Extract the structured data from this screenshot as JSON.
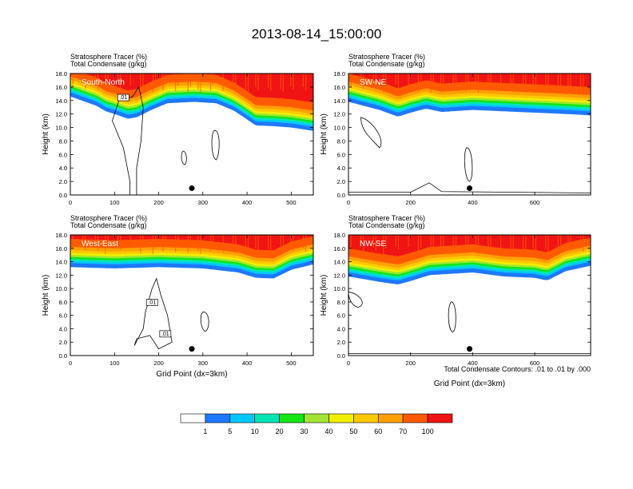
{
  "title": "2013-08-14_15:00:00",
  "panel_header": {
    "line1": "Stratosphere Tracer",
    "line1_units": "(%)",
    "line2": "Total Condensate",
    "line2_units": "(g/kg)"
  },
  "contour_note": "Total Condensate Contours: .01 to .01 by .000",
  "colors": {
    "levels": [
      "#ffffff",
      "#1e78ff",
      "#00c8ff",
      "#00e6b4",
      "#14e614",
      "#a0e632",
      "#f0f000",
      "#ffc800",
      "#ffa000",
      "#ff5a00",
      "#f01414"
    ],
    "contour": "#000000",
    "marker": "#000000"
  },
  "chart_data": [
    {
      "type": "heatmap",
      "panel": "South-North",
      "xlabel": "",
      "ylabel": "Height (km)",
      "xlim": [
        0,
        550
      ],
      "ylim": [
        0,
        18
      ],
      "xticks": [
        0,
        100,
        200,
        300,
        400,
        500
      ],
      "yticks": [
        "0.0",
        "2.0",
        "4.0",
        "6.0",
        "8.0",
        "10.0",
        "12.0",
        "14.0",
        "16.0",
        "18.0"
      ],
      "marker_x": 275,
      "contour_label": ".01",
      "tracer_base_profile_km": [
        [
          0,
          14.6
        ],
        [
          60,
          13.2
        ],
        [
          80,
          12.4
        ],
        [
          100,
          12.0
        ],
        [
          130,
          11.3
        ],
        [
          150,
          11.5
        ],
        [
          180,
          12.5
        ],
        [
          220,
          13.6
        ],
        [
          280,
          13.8
        ],
        [
          330,
          13.6
        ],
        [
          370,
          12.5
        ],
        [
          400,
          11.2
        ],
        [
          420,
          10.3
        ],
        [
          460,
          10.2
        ],
        [
          500,
          10.0
        ],
        [
          550,
          9.5
        ]
      ]
    },
    {
      "type": "heatmap",
      "panel": "SW-NE",
      "xlabel": "",
      "ylabel": "Height (km)",
      "xlim": [
        0,
        780
      ],
      "ylim": [
        0,
        18
      ],
      "xticks": [
        0,
        200,
        400,
        600
      ],
      "yticks": [
        "0.0",
        "2.0",
        "4.0",
        "6.0",
        "8.0",
        "10.0",
        "12.0",
        "14.0",
        "16.0",
        "18.0"
      ],
      "marker_x": 390,
      "contour_label": "",
      "tracer_base_profile_km": [
        [
          0,
          13.8
        ],
        [
          100,
          12.6
        ],
        [
          160,
          11.6
        ],
        [
          200,
          12.2
        ],
        [
          250,
          12.8
        ],
        [
          300,
          12.3
        ],
        [
          400,
          12.6
        ],
        [
          500,
          12.4
        ],
        [
          600,
          12.2
        ],
        [
          700,
          12.0
        ],
        [
          780,
          11.8
        ]
      ]
    },
    {
      "type": "heatmap",
      "panel": "West-East",
      "xlabel": "Grid Point (dx=3km)",
      "ylabel": "Height (km)",
      "xlim": [
        0,
        550
      ],
      "ylim": [
        0,
        18
      ],
      "xticks": [
        0,
        100,
        200,
        300,
        400,
        500
      ],
      "yticks": [
        "0.0",
        "2.0",
        "4.0",
        "6.0",
        "8.0",
        "10.0",
        "12.0",
        "14.0",
        "16.0",
        "18.0"
      ],
      "marker_x": 275,
      "contour_labels": [
        ".01",
        ".01"
      ],
      "tracer_base_profile_km": [
        [
          0,
          13.2
        ],
        [
          100,
          13.0
        ],
        [
          200,
          13.2
        ],
        [
          300,
          13.0
        ],
        [
          380,
          12.4
        ],
        [
          420,
          11.6
        ],
        [
          460,
          11.5
        ],
        [
          500,
          12.8
        ],
        [
          550,
          13.6
        ]
      ]
    },
    {
      "type": "heatmap",
      "panel": "NW-SE",
      "xlabel": "Grid Point (dx=3km)",
      "ylabel": "Height (km)",
      "xlim": [
        0,
        780
      ],
      "ylim": [
        0,
        18
      ],
      "xticks": [
        0,
        200,
        400,
        600
      ],
      "yticks": [
        "0.0",
        "2.0",
        "4.0",
        "6.0",
        "8.0",
        "10.0",
        "12.0",
        "14.0",
        "16.0",
        "18.0"
      ],
      "marker_x": 390,
      "contour_label": "",
      "tracer_base_profile_km": [
        [
          0,
          11.8
        ],
        [
          100,
          11.0
        ],
        [
          160,
          10.6
        ],
        [
          220,
          11.4
        ],
        [
          260,
          12.0
        ],
        [
          400,
          12.4
        ],
        [
          500,
          11.8
        ],
        [
          600,
          11.6
        ],
        [
          640,
          11.2
        ],
        [
          700,
          12.6
        ],
        [
          780,
          13.4
        ]
      ]
    }
  ],
  "colorbar": {
    "labels": [
      "1",
      "5",
      "10",
      "20",
      "30",
      "40",
      "50",
      "60",
      "70",
      "100"
    ],
    "colors": [
      "#ffffff",
      "#1e78ff",
      "#00c8ff",
      "#00e6b4",
      "#14e614",
      "#a0e632",
      "#f0f000",
      "#ffc800",
      "#ffa000",
      "#ff5a00",
      "#f01414"
    ]
  }
}
